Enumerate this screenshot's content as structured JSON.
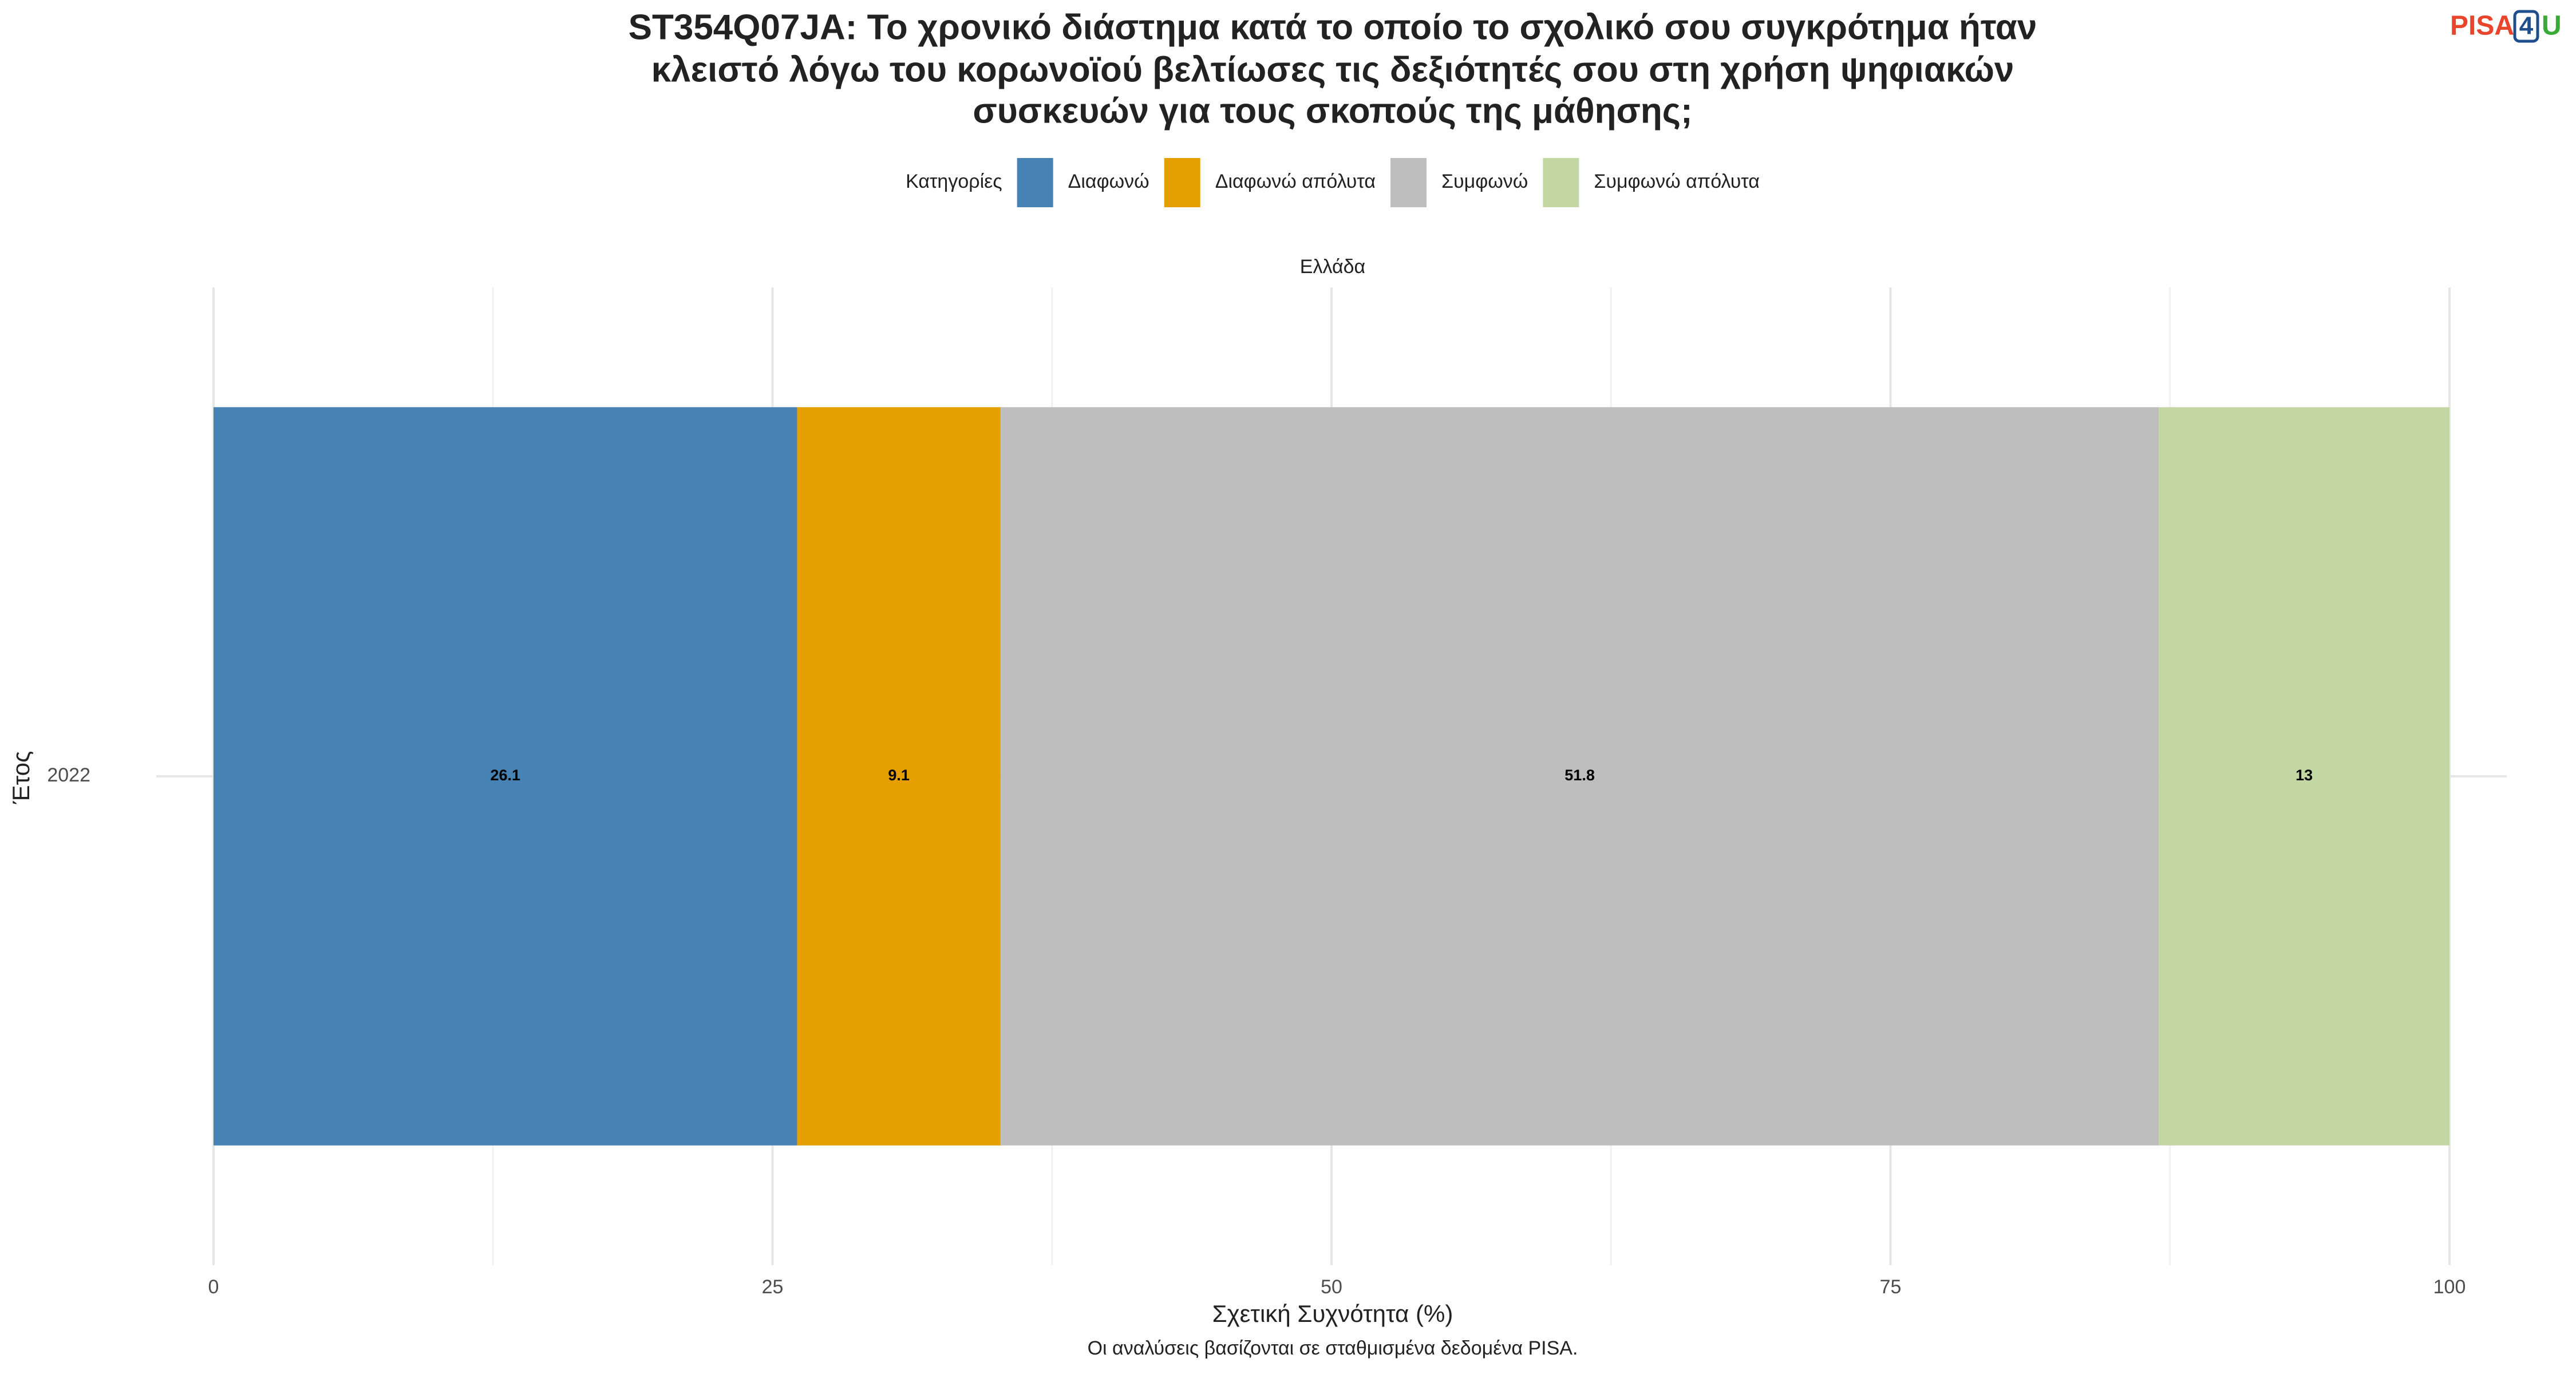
{
  "chart_data": {
    "type": "stacked-bar",
    "title": [
      "ST354Q07JA: Το χρονικό διάστημα κατά το οποίο το σχολικό σου συγκρότημα ήταν",
      "κλειστό λόγω του κορωνοϊού βελτίωσες τις δεξιότητές σου στη χρήση ψηφιακών",
      "συσκευών για τους σκοπούς της μάθησης;"
    ],
    "logo": [
      "PISA",
      "4",
      "U"
    ],
    "legend_title": "Κατηγορίες",
    "facet": "Ελλάδα",
    "categories": [
      "2022"
    ],
    "series": [
      {
        "name": "Διαφωνώ",
        "color": "#4682b4",
        "values": [
          26.1
        ]
      },
      {
        "name": "Διαφωνώ απόλυτα",
        "color": "#e69f00",
        "values": [
          9.1
        ]
      },
      {
        "name": "Συμφωνώ",
        "color": "#bebebe",
        "values": [
          51.8
        ]
      },
      {
        "name": "Συμφωνώ απόλυτα",
        "color": "#c2d7a4",
        "values": [
          13
        ]
      }
    ],
    "xlim": [
      0,
      100
    ],
    "xticks": [
      0,
      25,
      50,
      75,
      100
    ],
    "x_label": "Σχετική Συχνότητα (%)",
    "y_label": "Έτος",
    "caption": "Οι αναλύσεις βασίζονται σε σταθμισμένα δεδομένα PISA.",
    "grid": true
  }
}
